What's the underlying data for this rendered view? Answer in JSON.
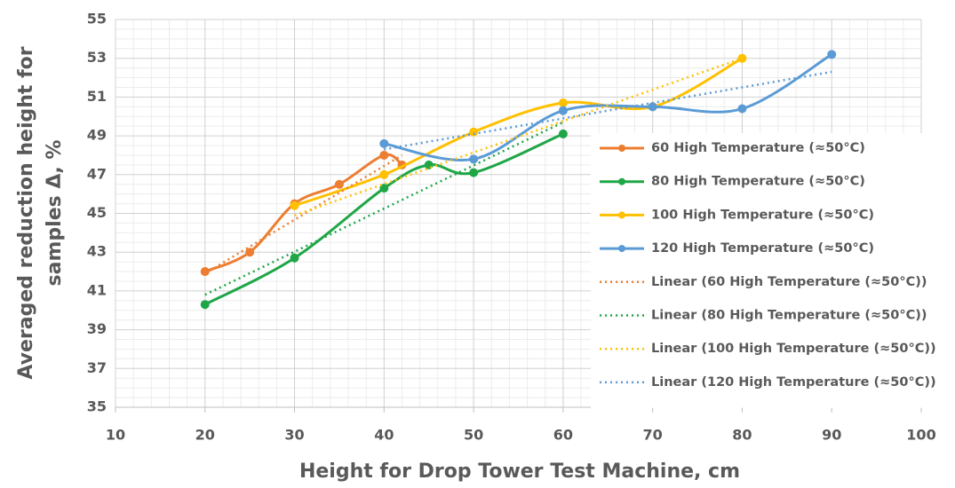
{
  "chart_data": {
    "type": "line",
    "xlabel": "Height for Drop Tower Test Machine, cm",
    "ylabel": [
      "Averaged reduction height for",
      "samples Δ, %"
    ],
    "xlim": [
      10,
      100
    ],
    "xticks": [
      10,
      20,
      30,
      40,
      50,
      60,
      70,
      80,
      90,
      100
    ],
    "ylim": [
      35,
      55
    ],
    "yticks": [
      35,
      37,
      39,
      41,
      43,
      45,
      47,
      49,
      51,
      53,
      55
    ],
    "grid": true,
    "minor_grid": true,
    "legend": "right",
    "series": [
      {
        "name": "60 High Temperature (≈50°C)",
        "color": "#ed7d31",
        "smooth": true,
        "x": [
          20,
          25,
          30,
          35,
          40,
          42
        ],
        "values": [
          42.0,
          43.0,
          45.5,
          46.5,
          48.0,
          47.5
        ]
      },
      {
        "name": "80 High Temperature (≈50°C)",
        "color": "#1fa647",
        "smooth": true,
        "x": [
          20,
          30,
          40,
          45,
          50,
          60
        ],
        "values": [
          40.3,
          42.7,
          46.3,
          47.5,
          47.1,
          49.1
        ]
      },
      {
        "name": "100 High Temperature (≈50°C)",
        "color": "#ffc000",
        "smooth": true,
        "x": [
          30,
          40,
          50,
          60,
          70,
          80
        ],
        "values": [
          45.4,
          47.0,
          49.2,
          50.7,
          50.5,
          53.0
        ]
      },
      {
        "name": "120 High Temperature (≈50°C)",
        "color": "#5b9bd5",
        "smooth": true,
        "x": [
          40,
          50,
          60,
          70,
          80,
          90
        ],
        "values": [
          48.6,
          47.8,
          50.3,
          50.5,
          50.4,
          53.2
        ]
      },
      {
        "name": "Linear (60 High Temperature (≈50°C))",
        "color": "#ed7d31",
        "dotted": true,
        "x": [
          20,
          42
        ],
        "values": [
          41.9,
          48.0
        ]
      },
      {
        "name": "Linear (80 High Temperature (≈50°C))",
        "color": "#1fa647",
        "dotted": true,
        "x": [
          20,
          60
        ],
        "values": [
          40.8,
          49.7
        ]
      },
      {
        "name": "Linear (100 High Temperature (≈50°C))",
        "color": "#ffc000",
        "dotted": true,
        "x": [
          30,
          80
        ],
        "values": [
          44.9,
          53.0
        ]
      },
      {
        "name": "Linear (120 High Temperature (≈50°C))",
        "color": "#5b9bd5",
        "dotted": true,
        "x": [
          40,
          90
        ],
        "values": [
          48.3,
          52.3
        ]
      }
    ]
  }
}
